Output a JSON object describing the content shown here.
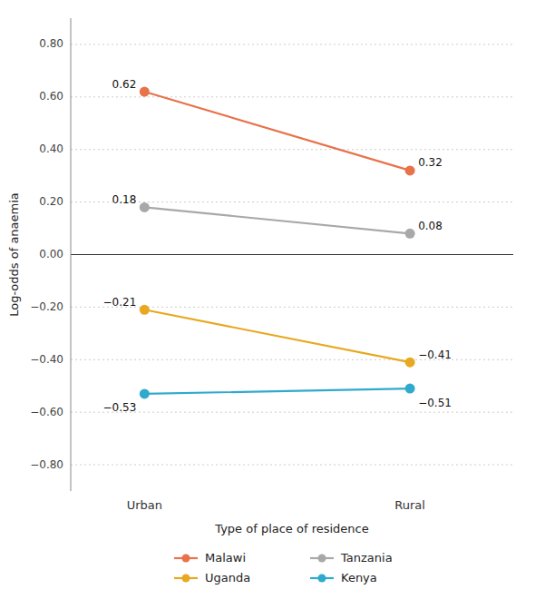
{
  "chart_data": {
    "type": "line",
    "categories": [
      "Urban",
      "Rural"
    ],
    "series": [
      {
        "name": "Malawi",
        "color": "#E8724A",
        "marker": "circle",
        "values": [
          0.62,
          0.32
        ],
        "value_labels": [
          "0.62",
          "0.32"
        ]
      },
      {
        "name": "Tanzania",
        "color": "#A8A8A8",
        "marker": "circle",
        "values": [
          0.18,
          0.08
        ],
        "value_labels": [
          "0.18",
          "0.08"
        ]
      },
      {
        "name": "Uganda",
        "color": "#E8A820",
        "marker": "circle",
        "values": [
          -0.21,
          -0.41
        ],
        "value_labels": [
          "−0.21",
          "−0.41"
        ]
      },
      {
        "name": "Kenya",
        "color": "#30AACC",
        "marker": "circle",
        "values": [
          -0.53,
          -0.51
        ],
        "value_labels": [
          "−0.53",
          "−0.51"
        ]
      }
    ],
    "x_label": "Type of place of residence",
    "y_label": "Log-odds of anaemia",
    "ylim": [
      -0.9,
      0.9
    ],
    "yticks": [
      {
        "value": -0.8,
        "label": "−0.80"
      },
      {
        "value": -0.6,
        "label": "−0.60"
      },
      {
        "value": -0.4,
        "label": "−0.40"
      },
      {
        "value": -0.2,
        "label": "−0.20"
      },
      {
        "value": 0.0,
        "label": "0.00"
      },
      {
        "value": 0.2,
        "label": "0.20"
      },
      {
        "value": 0.4,
        "label": "0.40"
      },
      {
        "value": 0.6,
        "label": "0.60"
      },
      {
        "value": 0.8,
        "label": "0.80"
      }
    ],
    "grid": true,
    "data_labels": true,
    "legend": "bottom"
  }
}
